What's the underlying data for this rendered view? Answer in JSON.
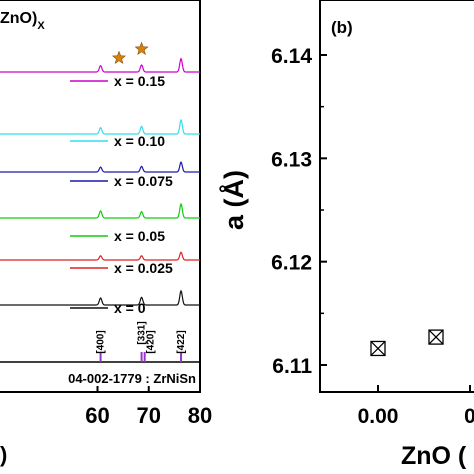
{
  "chart_data": [
    {
      "type": "line",
      "panel_label": "",
      "title_fragment": "ZnO)",
      "title_subscript": "X",
      "xlabel_fragment": ")",
      "xlim": [
        40,
        80
      ],
      "xticks": [
        "60",
        "70",
        "80"
      ],
      "series": [
        {
          "name": "x = 0.15",
          "color": "#cc00cc",
          "peaks": [
            60.6,
            68.6,
            76.3
          ],
          "heights": [
            0.45,
            0.5,
            0.95
          ]
        },
        {
          "name": "x = 0.10",
          "color": "#33ddee",
          "peaks": [
            60.6,
            68.6,
            76.3
          ],
          "heights": [
            0.45,
            0.55,
            1.0
          ]
        },
        {
          "name": "x = 0.075",
          "color": "#1a1aaa",
          "peaks": [
            60.6,
            68.6,
            76.3
          ],
          "heights": [
            0.35,
            0.4,
            0.7
          ]
        },
        {
          "name": "x = 0.05",
          "color": "#11cc11",
          "peaks": [
            60.6,
            68.6,
            76.3
          ],
          "heights": [
            0.5,
            0.45,
            1.0
          ]
        },
        {
          "name": "x = 0.025",
          "color": "#dd2222",
          "peaks": [
            60.6,
            68.6,
            76.3
          ],
          "heights": [
            0.3,
            0.3,
            0.55
          ]
        },
        {
          "name": "x = 0",
          "color": "#111111",
          "peaks": [
            60.6,
            68.6,
            76.3
          ],
          "heights": [
            0.5,
            0.55,
            1.0
          ]
        }
      ],
      "impurity_markers": [
        64.2,
        68.6
      ],
      "reference": {
        "label": "04-002-1779 : ZrNiSn",
        "lines": [
          {
            "x": 60.6,
            "hkl": "[400]"
          },
          {
            "x": 68.6,
            "hkl": "[331]"
          },
          {
            "x": 69.2,
            "hkl": "[420]"
          },
          {
            "x": 76.3,
            "hkl": "[422]"
          }
        ]
      }
    },
    {
      "type": "scatter",
      "panel_label": "(b)",
      "ylabel": "a (Å)",
      "xlabel_fragment": "ZnO (",
      "ylim": [
        6.11,
        6.145
      ],
      "yticks": [
        "6.14",
        "6.13",
        "6.12",
        "6.11"
      ],
      "xticks": [
        "0.00",
        "0"
      ],
      "x": [
        0.0,
        0.025
      ],
      "y": [
        6.1116,
        6.1127
      ]
    }
  ],
  "colors": {
    "marker_star": "#d4820a",
    "reference_line": "#9933cc",
    "axis": "#000000"
  }
}
